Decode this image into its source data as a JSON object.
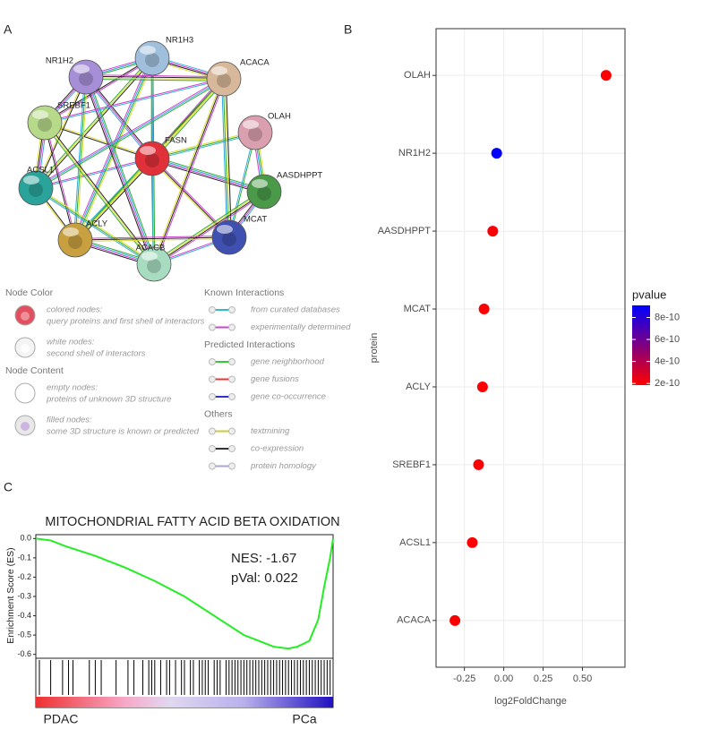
{
  "panel_labels": [
    "A",
    "B",
    "C"
  ],
  "network": {
    "nodes": [
      {
        "label": "NR1H3"
      },
      {
        "label": "NR1H2"
      },
      {
        "label": "ACACA"
      },
      {
        "label": "SREBF1"
      },
      {
        "label": "OLAH"
      },
      {
        "label": "FASN"
      },
      {
        "label": "AASDHPPT"
      },
      {
        "label": "ACSL1"
      },
      {
        "label": "MCAT"
      },
      {
        "label": "ACLY"
      },
      {
        "label": "ACACB"
      }
    ]
  },
  "legend": {
    "node_sections": [
      {
        "heading": "Node Color",
        "items": [
          {
            "title": "colored nodes:",
            "desc": "query proteins and first shell of interactors"
          },
          {
            "title": "white nodes:",
            "desc": "second shell of interactors"
          }
        ]
      },
      {
        "heading": "Node Content",
        "items": [
          {
            "title": "empty nodes:",
            "desc": "proteins of unknown 3D structure"
          },
          {
            "title": "filled nodes:",
            "desc": "some 3D structure is known or predicted"
          }
        ]
      }
    ],
    "edge_sections": [
      {
        "heading": "Known Interactions",
        "items": [
          "from curated databases",
          "experimentally determined"
        ]
      },
      {
        "heading": "Predicted Interactions",
        "items": [
          "gene neighborhood",
          "gene fusions",
          "gene co-occurrence"
        ]
      },
      {
        "heading": "Others",
        "items": [
          "textmining",
          "co-expression",
          "protein homology"
        ]
      }
    ]
  },
  "chart_data": [
    {
      "type": "scatter",
      "categories": [
        "OLAH",
        "NR1H2",
        "AASDHPPT",
        "MCAT",
        "ACLY",
        "SREBF1",
        "ACSL1",
        "ACACA"
      ],
      "values": [
        0.65,
        -0.045,
        -0.07,
        -0.125,
        -0.135,
        -0.16,
        -0.2,
        -0.31
      ],
      "pvalue": [
        1.9e-10,
        9.1e-10,
        2e-10,
        1.9e-10,
        1.9e-10,
        1.9e-10,
        1.9e-10,
        1.9e-10
      ],
      "xlim": [
        -0.43,
        0.77
      ],
      "xticks": [
        -0.25,
        {
          "value": 0,
          "label": "0.00"
        },
        0.25,
        {
          "value": 0.5,
          "label": "0.50"
        }
      ],
      "xlabel": "log2FoldChange",
      "ylabel": "protein",
      "grid": true,
      "color_scale": {
        "title": "pvalue",
        "lim": [
          1.85e-10,
          9.1e-10
        ],
        "low": "#ff0000",
        "high": "#0000ff",
        "ticks": [
          {
            "value": 2e-10,
            "label": "2e-10"
          },
          {
            "value": 4e-10,
            "label": "4e-10"
          },
          {
            "value": 6e-10,
            "label": "6e-10"
          },
          {
            "value": 8e-10,
            "label": "8e-10"
          }
        ]
      }
    },
    {
      "type": "line",
      "title": "MITOCHONDRIAL   FATTY  ACID  BETA  OXIDATION",
      "ylabel": "Enrichment Score (ES)",
      "x": [
        0,
        0.05,
        0.1,
        0.2,
        0.3,
        0.4,
        0.5,
        0.6,
        0.7,
        0.75,
        0.8,
        0.85,
        0.88,
        0.92,
        0.95,
        0.97,
        0.99,
        1
      ],
      "values": [
        0,
        -0.01,
        -0.04,
        -0.09,
        -0.15,
        -0.22,
        -0.3,
        -0.4,
        -0.5,
        -0.53,
        -0.56,
        -0.57,
        -0.56,
        -0.53,
        -0.42,
        -0.25,
        -0.1,
        0
      ],
      "color": "#22ee22",
      "xlim": [
        0,
        1
      ],
      "ylim": [
        0.02,
        -0.62
      ],
      "yticks": [
        {
          "value": 0,
          "label": "0.0"
        },
        -0.1,
        -0.2,
        -0.3,
        -0.4,
        -0.5,
        -0.6
      ],
      "hits": [
        0.012,
        0.05,
        0.09,
        0.11,
        0.125,
        0.18,
        0.2,
        0.22,
        0.27,
        0.31,
        0.33,
        0.36,
        0.38,
        0.39,
        0.4,
        0.42,
        0.44,
        0.45,
        0.47,
        0.49,
        0.5,
        0.52,
        0.53,
        0.55,
        0.56,
        0.57,
        0.58,
        0.6,
        0.61,
        0.62,
        0.64,
        0.65,
        0.66,
        0.67,
        0.68,
        0.69,
        0.7,
        0.71,
        0.72,
        0.73,
        0.74,
        0.75,
        0.76,
        0.77,
        0.78,
        0.79,
        0.8,
        0.81,
        0.82,
        0.83,
        0.84,
        0.85,
        0.86,
        0.87,
        0.88,
        0.89,
        0.9,
        0.91,
        0.92,
        0.93,
        0.94,
        0.95,
        0.96,
        0.97,
        0.98,
        0.99
      ],
      "annotations": [
        "NES: -1.67",
        "pVal: 0.022"
      ],
      "group_labels": [
        "PDAC",
        "PCa"
      ]
    }
  ]
}
